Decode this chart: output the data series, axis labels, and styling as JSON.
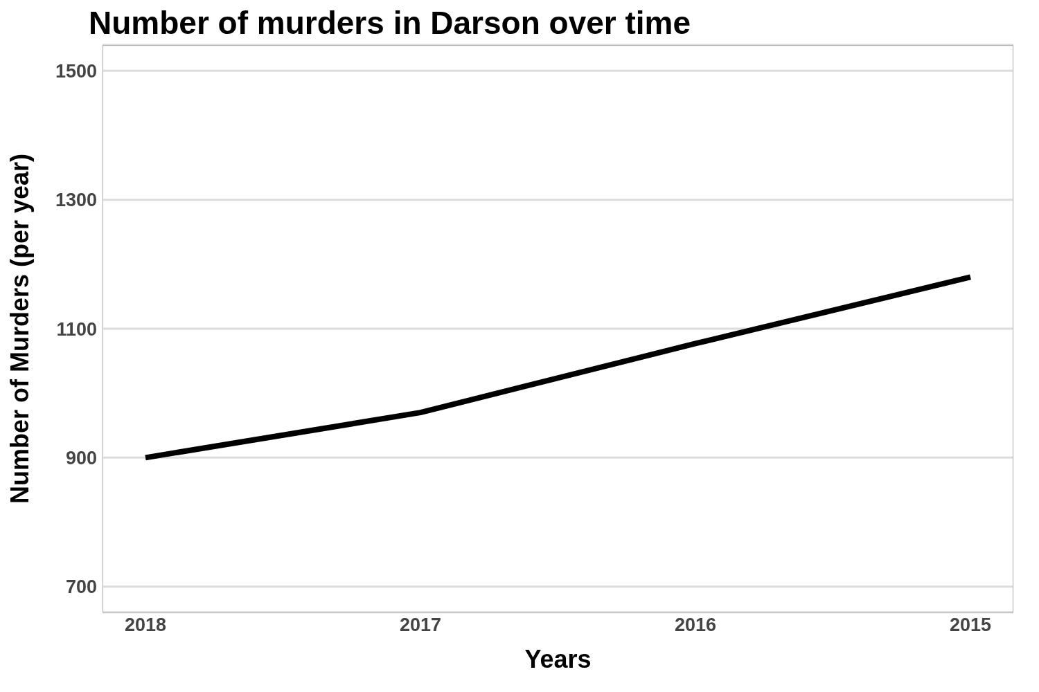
{
  "chart_data": {
    "type": "line",
    "title": "Number of murders in Darson over time",
    "xlabel": "Years",
    "ylabel": "Number of Murders (per year)",
    "categories": [
      "2018",
      "2017",
      "2016",
      "2015"
    ],
    "series": [
      {
        "color": "#000000",
        "values": [
          900,
          970,
          1077,
          1180
        ]
      }
    ],
    "ylim": [
      660,
      1540
    ],
    "yticks": [
      700,
      900,
      1100,
      1300,
      1500
    ],
    "grid": "y",
    "marker": "none",
    "line_style": "solid"
  }
}
